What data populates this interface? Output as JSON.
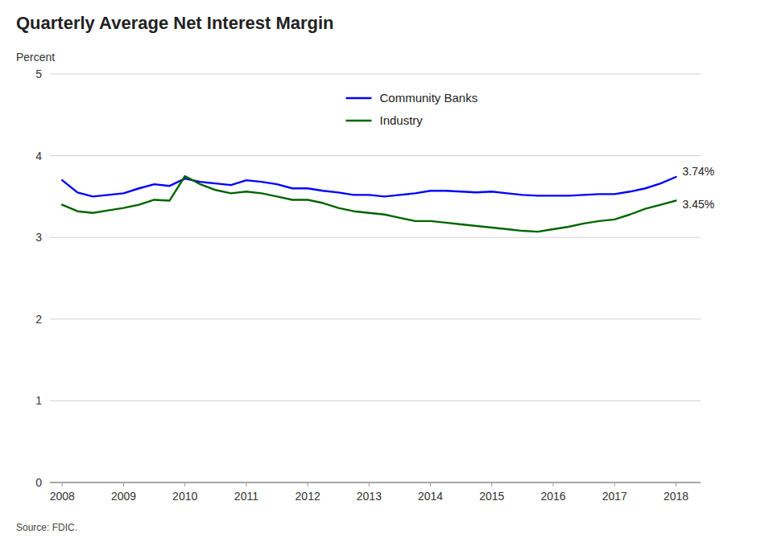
{
  "chart_data": {
    "type": "line",
    "title": "Quarterly Average Net Interest Margin",
    "ylabel": "Percent",
    "source": "Source: FDIC.",
    "x": [
      2008.0,
      2008.25,
      2008.5,
      2008.75,
      2009.0,
      2009.25,
      2009.5,
      2009.75,
      2010.0,
      2010.25,
      2010.5,
      2010.75,
      2011.0,
      2011.25,
      2011.5,
      2011.75,
      2012.0,
      2012.25,
      2012.5,
      2012.75,
      2013.0,
      2013.25,
      2013.5,
      2013.75,
      2014.0,
      2014.25,
      2014.5,
      2014.75,
      2015.0,
      2015.25,
      2015.5,
      2015.75,
      2016.0,
      2016.25,
      2016.5,
      2016.75,
      2017.0,
      2017.25,
      2017.5,
      2017.75,
      2018.0
    ],
    "series": [
      {
        "name": "Community Banks",
        "color": "#0000FF",
        "values": [
          3.7,
          3.55,
          3.5,
          3.52,
          3.54,
          3.6,
          3.65,
          3.63,
          3.72,
          3.68,
          3.66,
          3.64,
          3.7,
          3.68,
          3.65,
          3.6,
          3.6,
          3.57,
          3.55,
          3.52,
          3.52,
          3.5,
          3.52,
          3.54,
          3.57,
          3.57,
          3.56,
          3.55,
          3.56,
          3.54,
          3.52,
          3.51,
          3.51,
          3.51,
          3.52,
          3.53,
          3.53,
          3.56,
          3.6,
          3.66,
          3.74
        ]
      },
      {
        "name": "Industry",
        "color": "#006400",
        "values": [
          3.4,
          3.32,
          3.3,
          3.33,
          3.36,
          3.4,
          3.46,
          3.45,
          3.75,
          3.65,
          3.58,
          3.54,
          3.56,
          3.54,
          3.5,
          3.46,
          3.46,
          3.42,
          3.36,
          3.32,
          3.3,
          3.28,
          3.24,
          3.2,
          3.2,
          3.18,
          3.16,
          3.14,
          3.12,
          3.1,
          3.08,
          3.07,
          3.1,
          3.13,
          3.17,
          3.2,
          3.22,
          3.28,
          3.35,
          3.4,
          3.45
        ]
      }
    ],
    "annotations": [
      {
        "text": "3.74%",
        "x": 2018.0,
        "y": 3.74
      },
      {
        "text": "3.45%",
        "x": 2018.0,
        "y": 3.45
      }
    ],
    "xlim": [
      2007.8,
      2018.4
    ],
    "xticks": [
      2008,
      2009,
      2010,
      2011,
      2012,
      2013,
      2014,
      2015,
      2016,
      2017,
      2018
    ],
    "ylim": [
      0,
      5
    ],
    "yticks": [
      0,
      1,
      2,
      3,
      4,
      5
    ],
    "grid": true,
    "legend": "upper center"
  }
}
